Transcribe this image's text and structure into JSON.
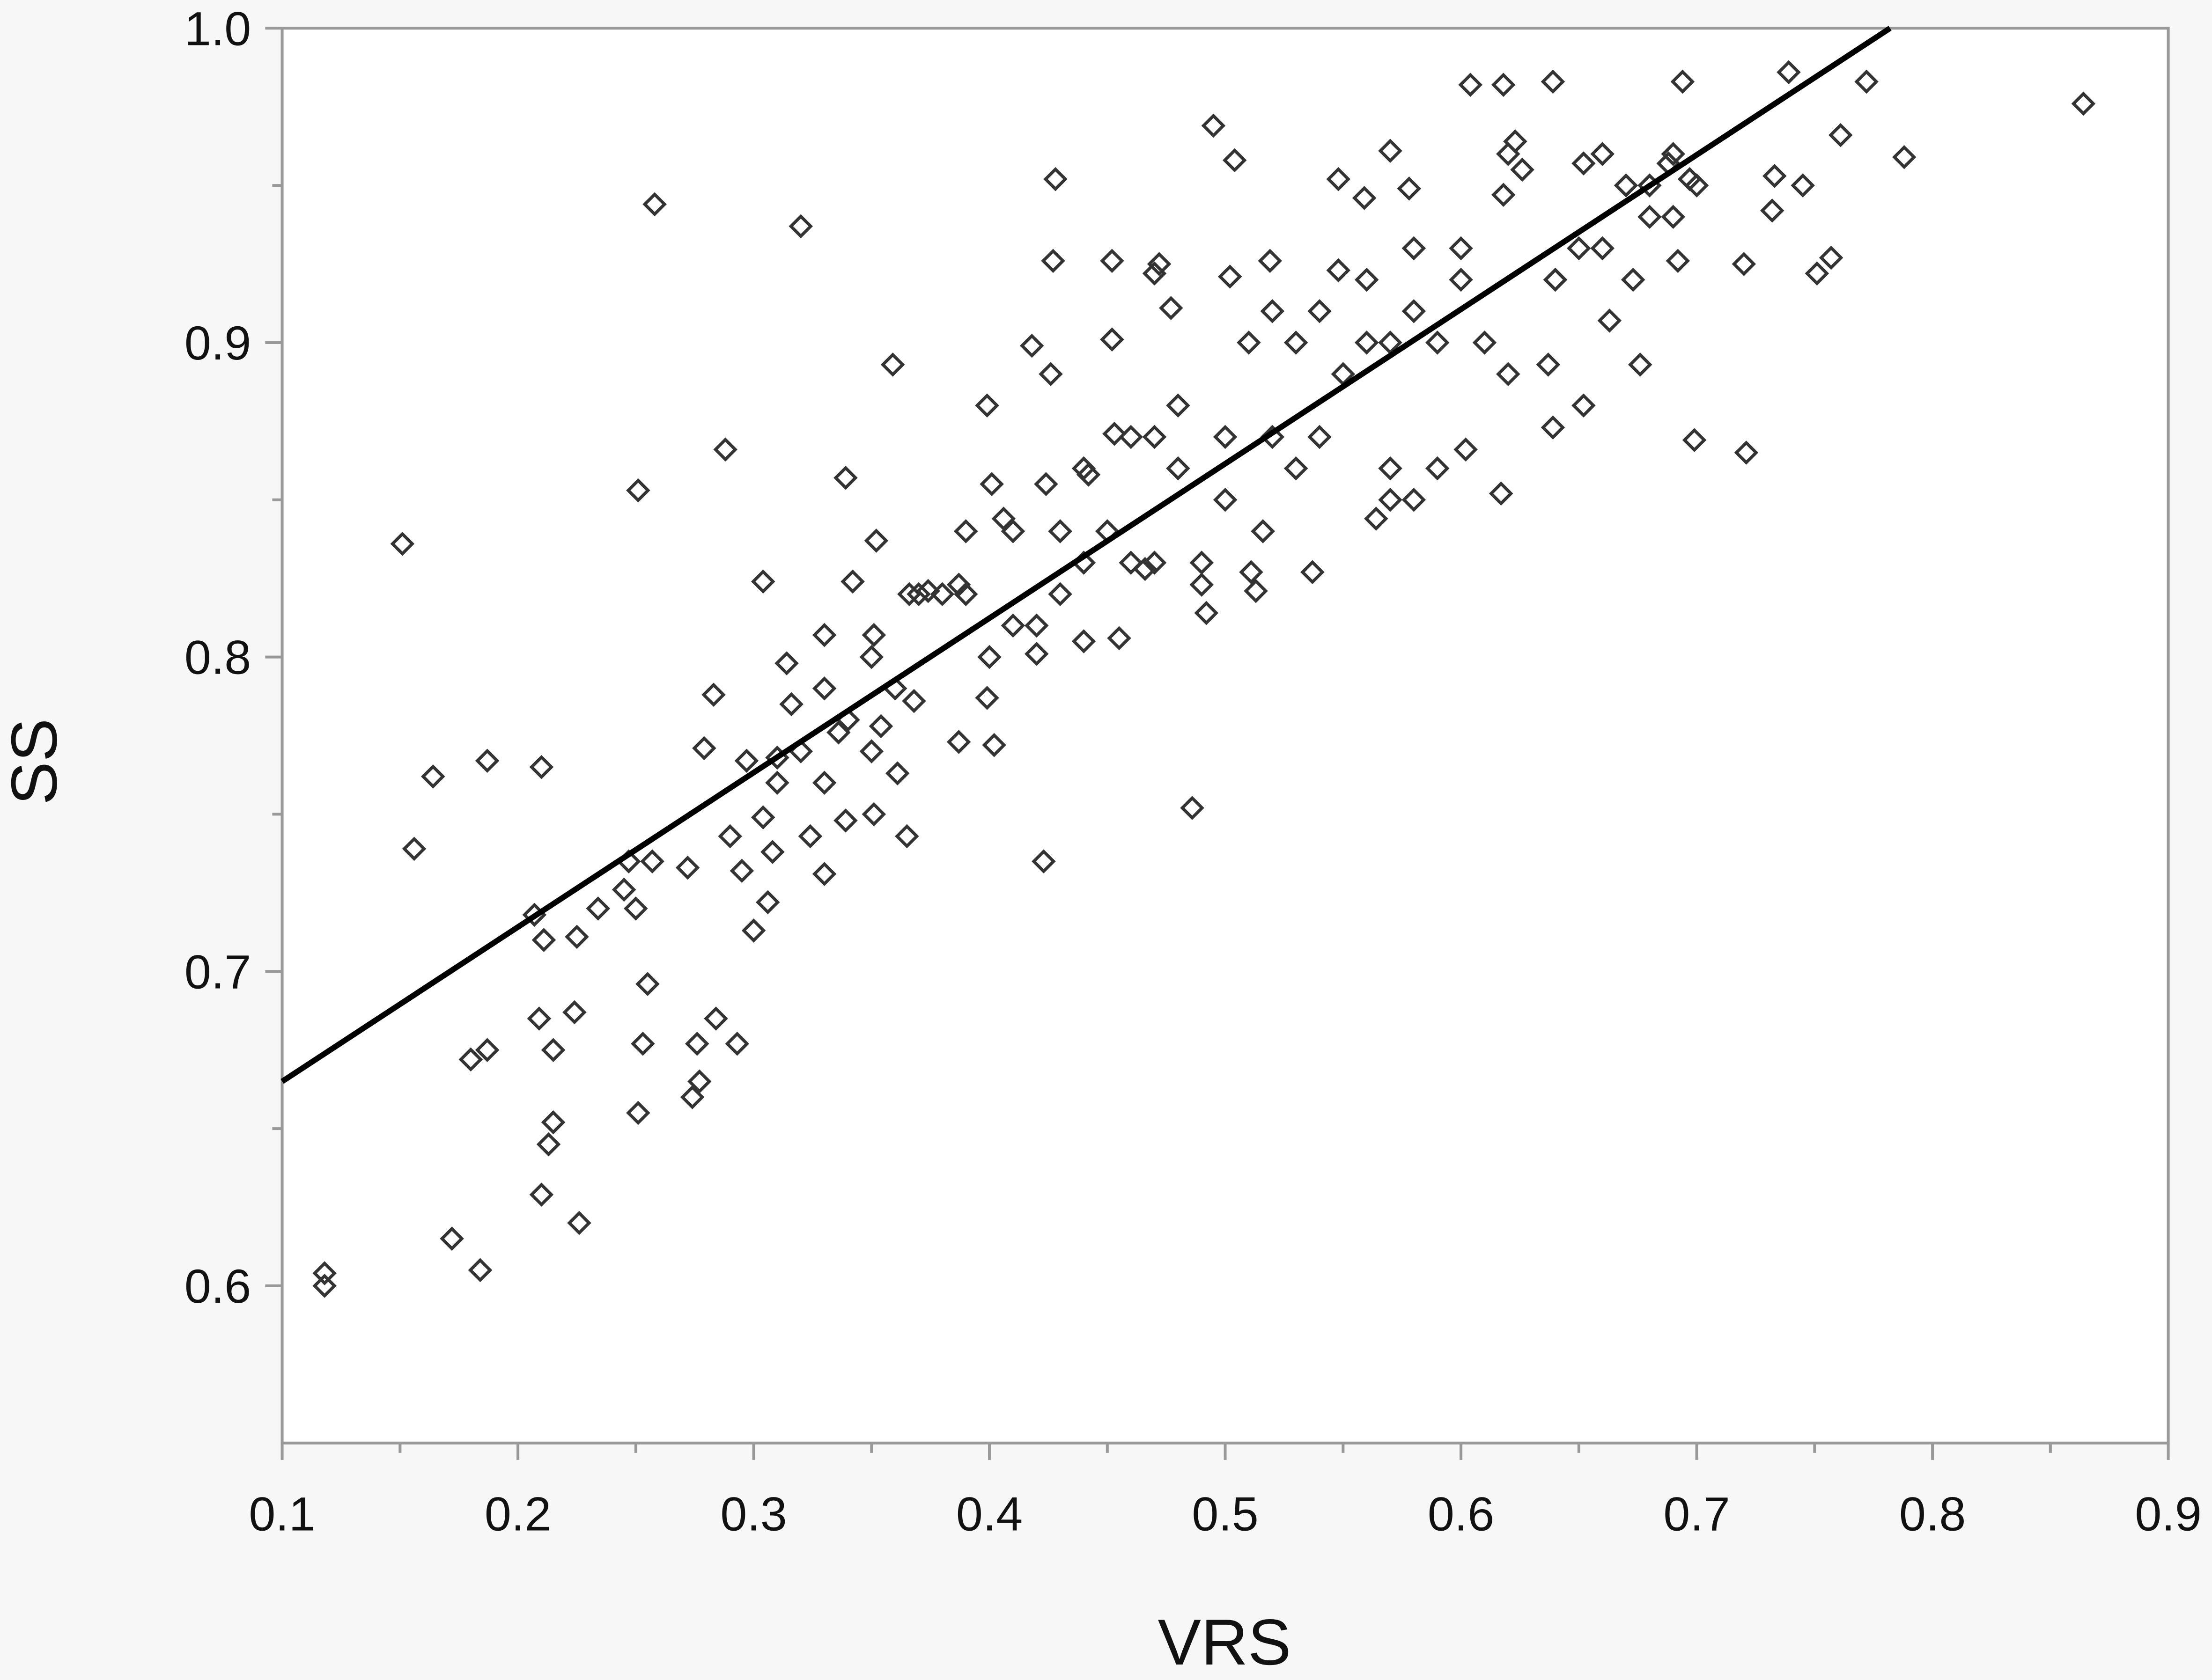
{
  "chart_data": {
    "type": "scatter",
    "title": "",
    "xlabel": "VRS",
    "ylabel": "SS",
    "xlim": [
      0.1,
      0.9
    ],
    "ylim": [
      0.55,
      1.0
    ],
    "xticks": [
      "0.1",
      "0.2",
      "0.3",
      "0.4",
      "0.5",
      "0.6",
      "0.7",
      "0.8",
      "0.9"
    ],
    "yticks": [
      "0.6",
      "0.7",
      "0.8",
      "0.9",
      "1.0"
    ],
    "grid": false,
    "marker": "open-diamond",
    "colors": {
      "marker": "#333333",
      "fit_line": "#000000",
      "axis": "#999999",
      "plot_bg": "#ffffff",
      "page_bg": "#f7f7f7"
    },
    "fit_line": {
      "x": [
        0.1,
        0.782
      ],
      "y": [
        0.665,
        1.0
      ]
    },
    "points": [
      [
        0.118,
        0.604
      ],
      [
        0.118,
        0.6
      ],
      [
        0.151,
        0.836
      ],
      [
        0.156,
        0.739
      ],
      [
        0.164,
        0.762
      ],
      [
        0.172,
        0.615
      ],
      [
        0.184,
        0.605
      ],
      [
        0.18,
        0.672
      ],
      [
        0.187,
        0.675
      ],
      [
        0.187,
        0.767
      ],
      [
        0.21,
        0.765
      ],
      [
        0.207,
        0.718
      ],
      [
        0.209,
        0.685
      ],
      [
        0.211,
        0.71
      ],
      [
        0.215,
        0.675
      ],
      [
        0.215,
        0.652
      ],
      [
        0.213,
        0.645
      ],
      [
        0.21,
        0.629
      ],
      [
        0.226,
        0.62
      ],
      [
        0.224,
        0.687
      ],
      [
        0.225,
        0.711
      ],
      [
        0.234,
        0.72
      ],
      [
        0.245,
        0.726
      ],
      [
        0.247,
        0.735
      ],
      [
        0.251,
        0.853
      ],
      [
        0.258,
        0.944
      ],
      [
        0.251,
        0.655
      ],
      [
        0.253,
        0.677
      ],
      [
        0.255,
        0.696
      ],
      [
        0.25,
        0.72
      ],
      [
        0.257,
        0.735
      ],
      [
        0.272,
        0.733
      ],
      [
        0.274,
        0.66
      ],
      [
        0.277,
        0.665
      ],
      [
        0.276,
        0.677
      ],
      [
        0.279,
        0.771
      ],
      [
        0.283,
        0.788
      ],
      [
        0.284,
        0.685
      ],
      [
        0.288,
        0.866
      ],
      [
        0.29,
        0.743
      ],
      [
        0.293,
        0.677
      ],
      [
        0.295,
        0.732
      ],
      [
        0.297,
        0.767
      ],
      [
        0.3,
        0.713
      ],
      [
        0.304,
        0.824
      ],
      [
        0.304,
        0.749
      ],
      [
        0.306,
        0.722
      ],
      [
        0.308,
        0.738
      ],
      [
        0.31,
        0.768
      ],
      [
        0.314,
        0.798
      ],
      [
        0.316,
        0.785
      ],
      [
        0.32,
        0.937
      ],
      [
        0.324,
        0.743
      ],
      [
        0.33,
        0.731
      ],
      [
        0.33,
        0.807
      ],
      [
        0.33,
        0.76
      ],
      [
        0.336,
        0.776
      ],
      [
        0.339,
        0.857
      ],
      [
        0.342,
        0.824
      ],
      [
        0.339,
        0.748
      ],
      [
        0.351,
        0.75
      ],
      [
        0.352,
        0.837
      ],
      [
        0.351,
        0.807
      ],
      [
        0.354,
        0.778
      ],
      [
        0.359,
        0.893
      ],
      [
        0.361,
        0.763
      ],
      [
        0.365,
        0.743
      ],
      [
        0.368,
        0.786
      ],
      [
        0.366,
        0.82
      ],
      [
        0.374,
        0.821
      ],
      [
        0.387,
        0.773
      ],
      [
        0.39,
        0.84
      ],
      [
        0.387,
        0.823
      ],
      [
        0.399,
        0.88
      ],
      [
        0.401,
        0.855
      ],
      [
        0.402,
        0.772
      ],
      [
        0.399,
        0.787
      ],
      [
        0.406,
        0.844
      ],
      [
        0.418,
        0.899
      ],
      [
        0.42,
        0.801
      ],
      [
        0.423,
        0.735
      ],
      [
        0.426,
        0.89
      ],
      [
        0.427,
        0.926
      ],
      [
        0.428,
        0.952
      ],
      [
        0.424,
        0.855
      ],
      [
        0.44,
        0.805
      ],
      [
        0.442,
        0.858
      ],
      [
        0.452,
        0.926
      ],
      [
        0.452,
        0.901
      ],
      [
        0.453,
        0.871
      ],
      [
        0.455,
        0.806
      ],
      [
        0.466,
        0.828
      ],
      [
        0.47,
        0.922
      ],
      [
        0.472,
        0.925
      ],
      [
        0.477,
        0.911
      ],
      [
        0.48,
        0.88
      ],
      [
        0.486,
        0.752
      ],
      [
        0.49,
        0.823
      ],
      [
        0.492,
        0.814
      ],
      [
        0.495,
        0.969
      ],
      [
        0.504,
        0.958
      ],
      [
        0.502,
        0.921
      ],
      [
        0.511,
        0.827
      ],
      [
        0.513,
        0.821
      ],
      [
        0.519,
        0.926
      ],
      [
        0.516,
        0.84
      ],
      [
        0.537,
        0.827
      ],
      [
        0.548,
        0.952
      ],
      [
        0.548,
        0.923
      ],
      [
        0.559,
        0.946
      ],
      [
        0.564,
        0.844
      ],
      [
        0.57,
        0.961
      ],
      [
        0.578,
        0.949
      ],
      [
        0.602,
        0.866
      ],
      [
        0.604,
        0.982
      ],
      [
        0.617,
        0.852
      ],
      [
        0.618,
        0.982
      ],
      [
        0.618,
        0.947
      ],
      [
        0.623,
        0.964
      ],
      [
        0.626,
        0.955
      ],
      [
        0.639,
        0.983
      ],
      [
        0.637,
        0.893
      ],
      [
        0.639,
        0.873
      ],
      [
        0.652,
        0.88
      ],
      [
        0.652,
        0.957
      ],
      [
        0.663,
        0.907
      ],
      [
        0.676,
        0.893
      ],
      [
        0.673,
        0.92
      ],
      [
        0.688,
        0.957
      ],
      [
        0.692,
        0.926
      ],
      [
        0.694,
        0.983
      ],
      [
        0.697,
        0.952
      ],
      [
        0.699,
        0.869
      ],
      [
        0.72,
        0.925
      ],
      [
        0.721,
        0.865
      ],
      [
        0.732,
        0.942
      ],
      [
        0.733,
        0.953
      ],
      [
        0.739,
        0.986
      ],
      [
        0.745,
        0.95
      ],
      [
        0.751,
        0.922
      ],
      [
        0.757,
        0.927
      ],
      [
        0.761,
        0.966
      ],
      [
        0.772,
        0.983
      ],
      [
        0.788,
        0.959
      ],
      [
        0.864,
        0.976
      ],
      [
        0.46,
        0.83
      ],
      [
        0.47,
        0.87
      ],
      [
        0.44,
        0.83
      ],
      [
        0.45,
        0.84
      ],
      [
        0.48,
        0.86
      ],
      [
        0.5,
        0.87
      ],
      [
        0.52,
        0.87
      ],
      [
        0.53,
        0.9
      ],
      [
        0.54,
        0.87
      ],
      [
        0.55,
        0.89
      ],
      [
        0.56,
        0.92
      ],
      [
        0.57,
        0.86
      ],
      [
        0.58,
        0.91
      ],
      [
        0.59,
        0.9
      ],
      [
        0.6,
        0.92
      ],
      [
        0.61,
        0.9
      ],
      [
        0.62,
        0.89
      ],
      [
        0.64,
        0.92
      ],
      [
        0.65,
        0.93
      ],
      [
        0.66,
        0.93
      ],
      [
        0.67,
        0.95
      ],
      [
        0.68,
        0.95
      ],
      [
        0.69,
        0.94
      ],
      [
        0.7,
        0.95
      ],
      [
        0.58,
        0.85
      ],
      [
        0.57,
        0.85
      ],
      [
        0.59,
        0.86
      ],
      [
        0.53,
        0.86
      ],
      [
        0.5,
        0.85
      ],
      [
        0.49,
        0.83
      ],
      [
        0.47,
        0.83
      ],
      [
        0.43,
        0.82
      ],
      [
        0.42,
        0.81
      ],
      [
        0.4,
        0.8
      ],
      [
        0.41,
        0.81
      ],
      [
        0.38,
        0.82
      ],
      [
        0.36,
        0.79
      ],
      [
        0.35,
        0.8
      ],
      [
        0.35,
        0.77
      ],
      [
        0.34,
        0.78
      ],
      [
        0.33,
        0.79
      ],
      [
        0.32,
        0.77
      ],
      [
        0.31,
        0.76
      ],
      [
        0.37,
        0.82
      ],
      [
        0.39,
        0.82
      ],
      [
        0.41,
        0.84
      ],
      [
        0.43,
        0.84
      ],
      [
        0.44,
        0.86
      ],
      [
        0.46,
        0.87
      ],
      [
        0.51,
        0.9
      ],
      [
        0.52,
        0.91
      ],
      [
        0.54,
        0.91
      ],
      [
        0.56,
        0.9
      ],
      [
        0.57,
        0.9
      ],
      [
        0.58,
        0.93
      ],
      [
        0.6,
        0.93
      ],
      [
        0.62,
        0.96
      ],
      [
        0.64,
        0.92
      ],
      [
        0.66,
        0.96
      ],
      [
        0.69,
        0.96
      ],
      [
        0.68,
        0.94
      ]
    ]
  }
}
